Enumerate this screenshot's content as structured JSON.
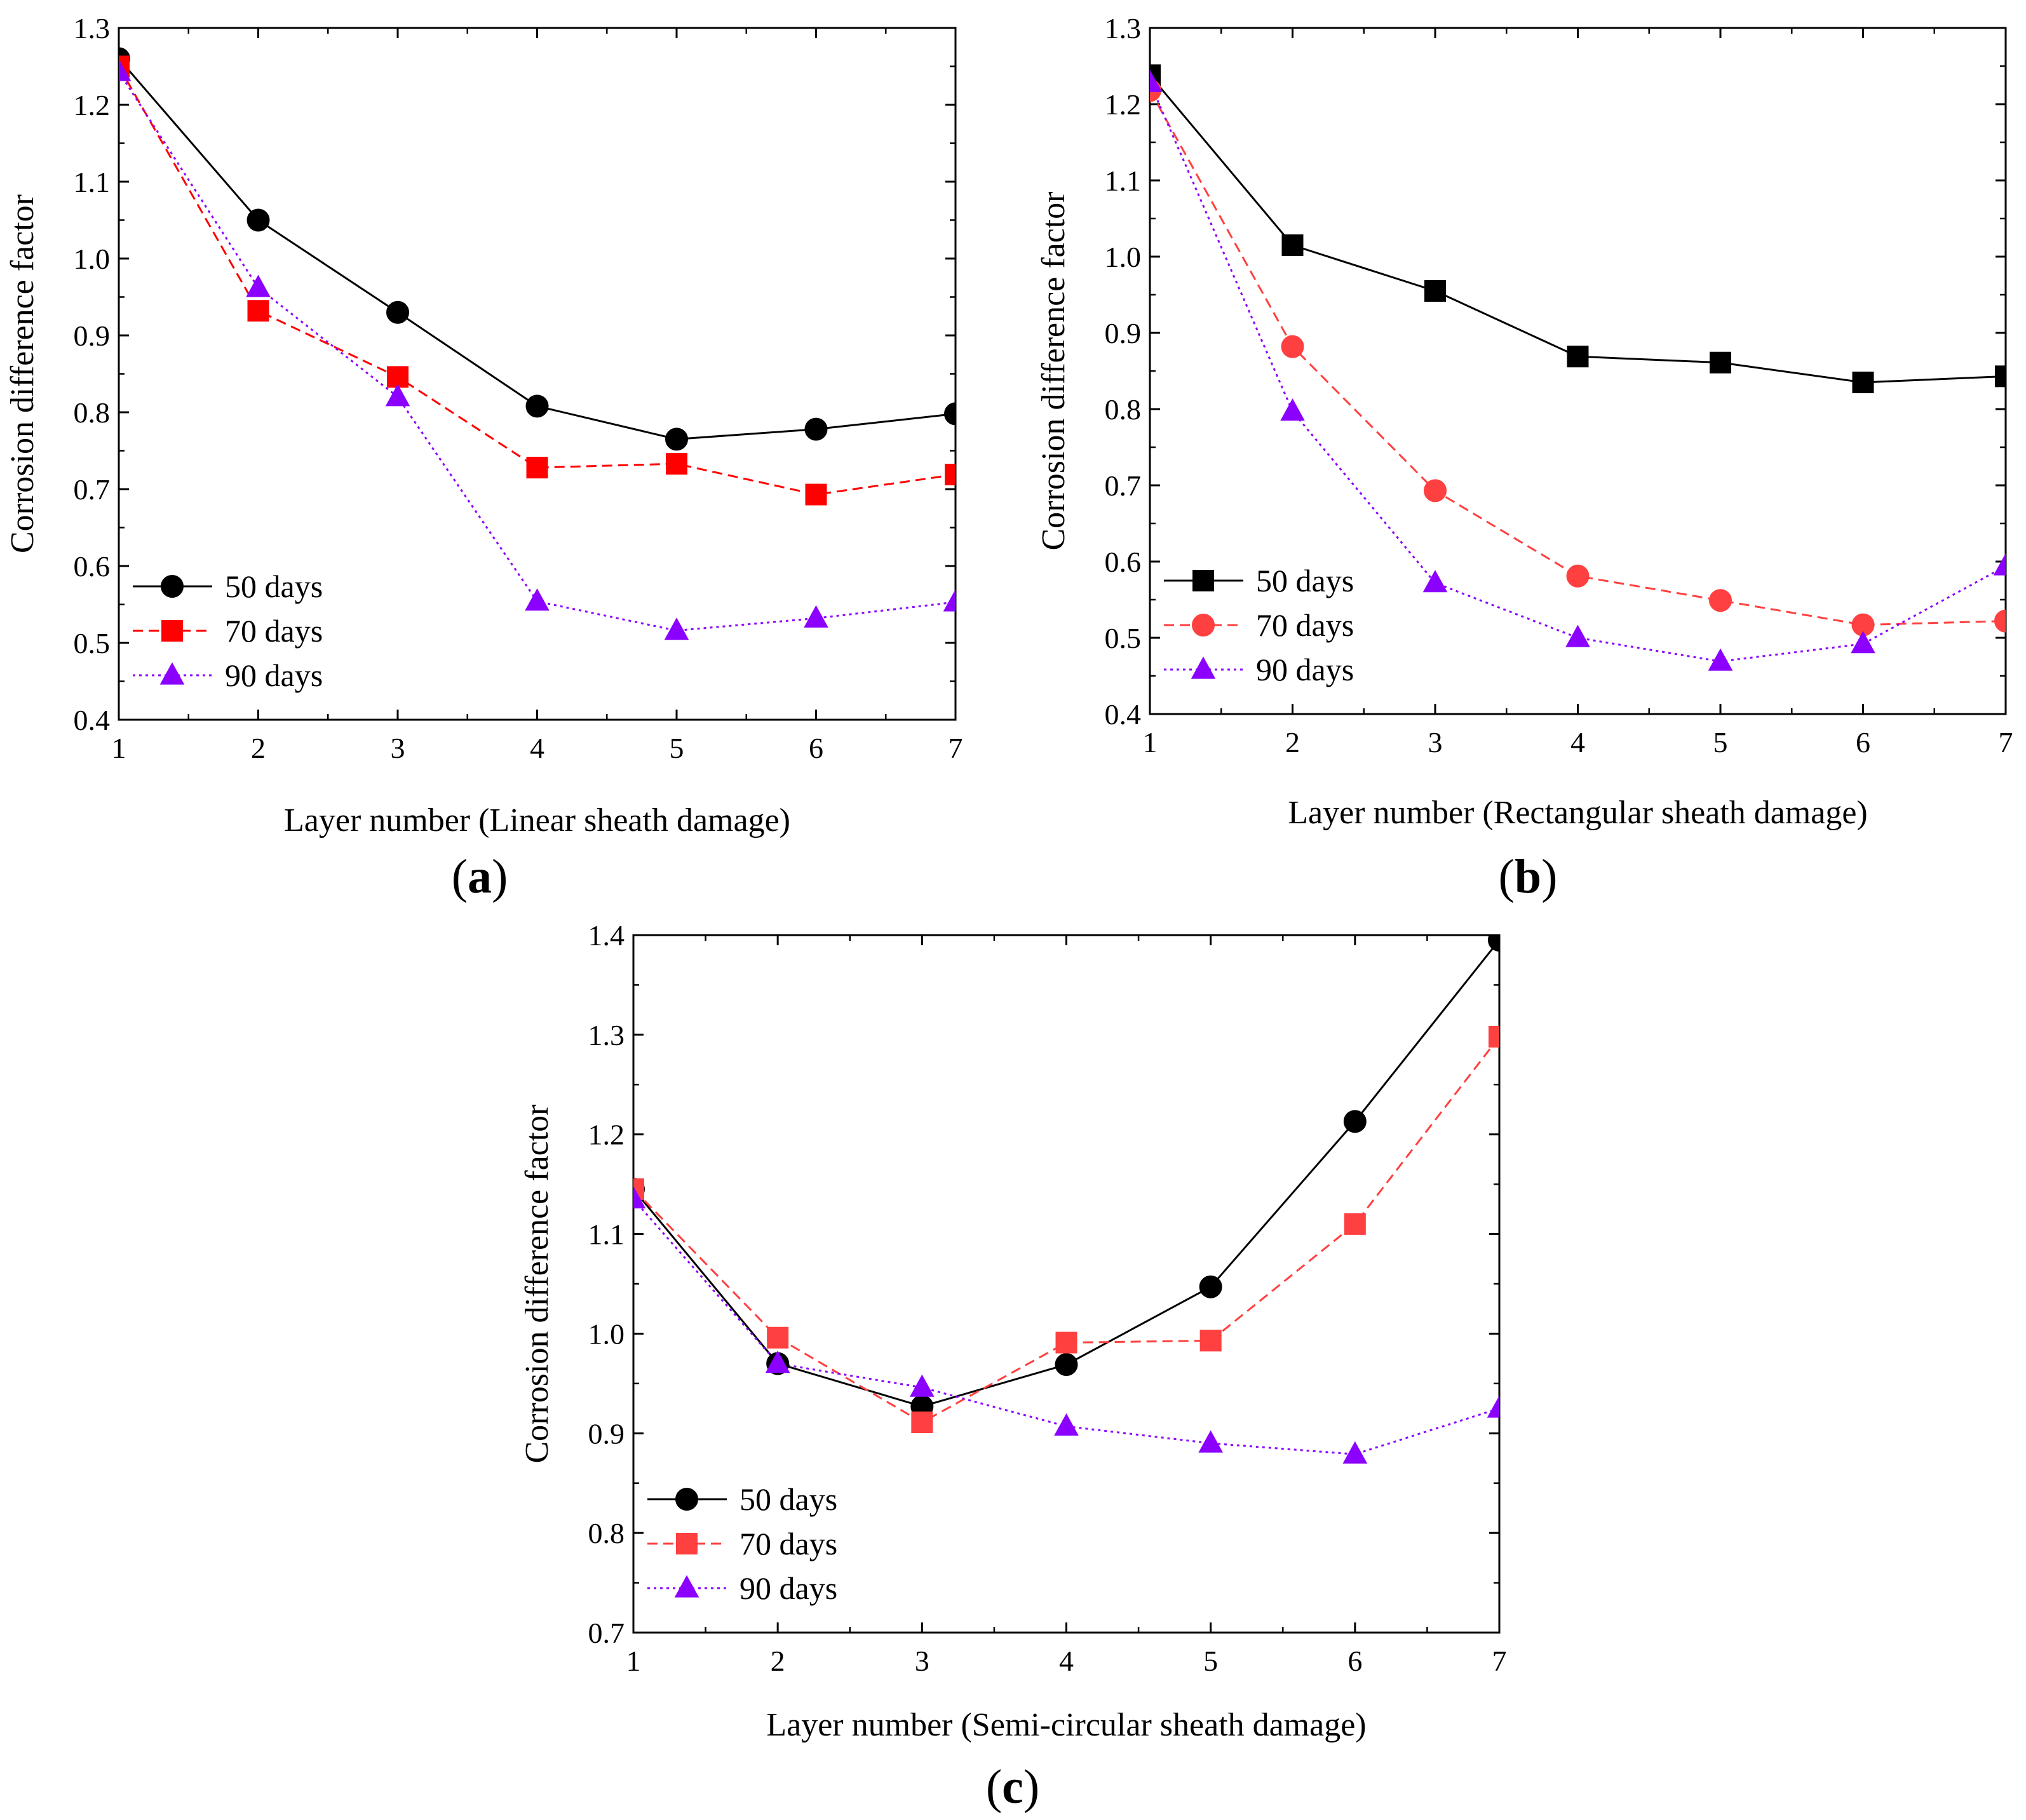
{
  "figure": {
    "panels": [
      {
        "letter_open": "(",
        "letter": "a",
        "letter_close": ")"
      },
      {
        "letter_open": "(",
        "letter": "b",
        "letter_close": ")"
      },
      {
        "letter_open": "(",
        "letter": "c",
        "letter_close": ")"
      }
    ]
  },
  "chart_data": [
    {
      "type": "line",
      "panel": "a",
      "title": "",
      "xlabel": "Layer number (Linear sheath damage)",
      "ylabel": "Corrosion difference factor",
      "x": [
        1,
        2,
        3,
        4,
        5,
        6,
        7
      ],
      "xlim": [
        1,
        7
      ],
      "ylim": [
        0.4,
        1.3
      ],
      "xticks": [
        "1",
        "2",
        "3",
        "4",
        "5",
        "6",
        "7"
      ],
      "yticks": [
        "0.4",
        "0.5",
        "0.6",
        "0.7",
        "0.8",
        "0.9",
        "1.0",
        "1.1",
        "1.2",
        "1.3"
      ],
      "legend_position": "lower-left",
      "series": [
        {
          "name": "50 days",
          "marker": "circle",
          "color": "#000000",
          "dash": "solid",
          "values": [
            1.26,
            1.05,
            0.93,
            0.808,
            0.765,
            0.778,
            0.798
          ]
        },
        {
          "name": "70 days",
          "marker": "square",
          "color": "#ff0000",
          "dash": "dashed",
          "values": [
            1.25,
            0.932,
            0.846,
            0.728,
            0.733,
            0.693,
            0.719
          ]
        },
        {
          "name": "90 days",
          "marker": "triangle",
          "color": "#8b00ff",
          "dash": "dotted",
          "values": [
            1.243,
            0.962,
            0.82,
            0.554,
            0.516,
            0.532,
            0.553
          ]
        }
      ]
    },
    {
      "type": "line",
      "panel": "b",
      "title": "",
      "xlabel": "Layer number (Rectangular sheath damage)",
      "ylabel": "Corrosion difference factor",
      "x": [
        1,
        2,
        3,
        4,
        5,
        6,
        7
      ],
      "xlim": [
        1,
        7
      ],
      "ylim": [
        0.4,
        1.3
      ],
      "xticks": [
        "1",
        "2",
        "3",
        "4",
        "5",
        "6",
        "7"
      ],
      "yticks": [
        "0.4",
        "0.5",
        "0.6",
        "0.7",
        "0.8",
        "0.9",
        "1.0",
        "1.1",
        "1.2",
        "1.3"
      ],
      "legend_position": "lower-left",
      "series": [
        {
          "name": "50 days",
          "marker": "square",
          "color": "#000000",
          "dash": "solid",
          "values": [
            1.238,
            1.015,
            0.955,
            0.869,
            0.861,
            0.835,
            0.843
          ]
        },
        {
          "name": "70 days",
          "marker": "circle",
          "color": "#ff4040",
          "dash": "dashed",
          "values": [
            1.218,
            0.882,
            0.693,
            0.581,
            0.549,
            0.517,
            0.522
          ]
        },
        {
          "name": "90 days",
          "marker": "triangle",
          "color": "#8b00ff",
          "dash": "dotted",
          "values": [
            1.228,
            0.797,
            0.572,
            0.5,
            0.469,
            0.492,
            0.594
          ]
        }
      ]
    },
    {
      "type": "line",
      "panel": "c",
      "title": "",
      "xlabel": "Layer number (Semi-circular sheath damage)",
      "ylabel": "Corrosion difference factor",
      "x": [
        1,
        2,
        3,
        4,
        5,
        6,
        7
      ],
      "xlim": [
        1,
        7
      ],
      "ylim": [
        0.7,
        1.4
      ],
      "xticks": [
        "1",
        "2",
        "3",
        "4",
        "5",
        "6",
        "7"
      ],
      "yticks": [
        "0.7",
        "0.8",
        "0.9",
        "1.0",
        "1.1",
        "1.2",
        "1.3",
        "1.4"
      ],
      "legend_position": "lower-left",
      "series": [
        {
          "name": "50 days",
          "marker": "circle",
          "color": "#000000",
          "dash": "solid",
          "values": [
            1.145,
            0.97,
            0.927,
            0.969,
            1.047,
            1.213,
            1.395
          ]
        },
        {
          "name": "70 days",
          "marker": "square",
          "color": "#ff4040",
          "dash": "dashed",
          "values": [
            1.145,
            0.996,
            0.911,
            0.991,
            0.993,
            1.11,
            1.298
          ]
        },
        {
          "name": "90 days",
          "marker": "triangle",
          "color": "#8b00ff",
          "dash": "dotted",
          "values": [
            1.135,
            0.97,
            0.946,
            0.907,
            0.89,
            0.879,
            0.925
          ]
        }
      ]
    }
  ]
}
